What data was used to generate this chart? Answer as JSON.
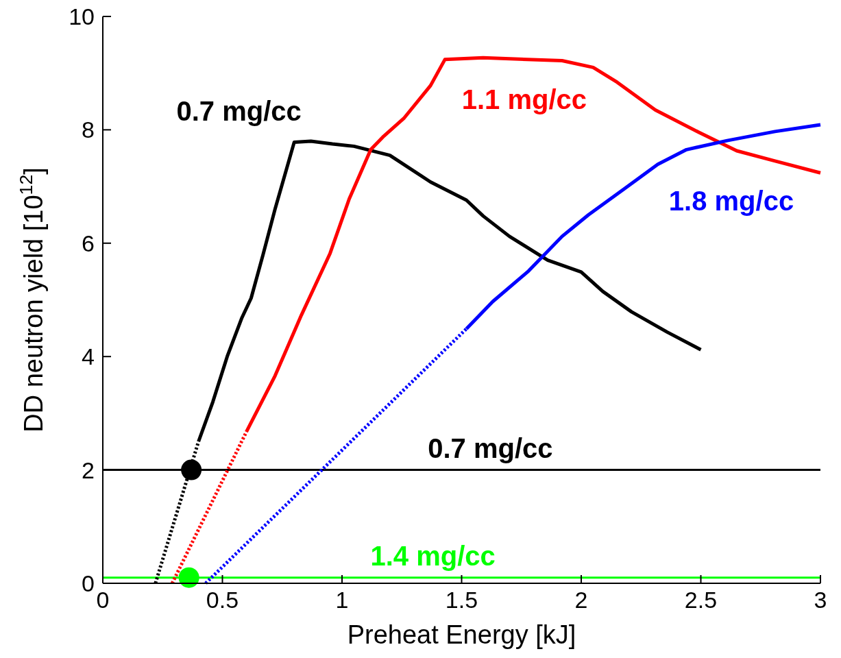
{
  "chart_data": {
    "type": "line",
    "xlabel": "Preheat Energy [kJ]",
    "ylabel": "DD neutron yield [10$^{12}$]",
    "xlim": [
      0,
      3
    ],
    "ylim": [
      0,
      10
    ],
    "xticks": [
      0,
      0.5,
      1,
      1.5,
      2,
      2.5,
      3
    ],
    "yticks": [
      0,
      2,
      4,
      6,
      8,
      10
    ],
    "grid": false,
    "marker": "none",
    "series": [
      {
        "color": "#000000",
        "line_style": "dotted",
        "x": [
          0.22,
          0.4
        ],
        "values": [
          0,
          2.5
        ]
      },
      {
        "name": "0.7 mg/cc",
        "color": "#000000",
        "line_style": "solid",
        "x": [
          0.4,
          0.46,
          0.52,
          0.58,
          0.62,
          0.67,
          0.72,
          0.8,
          0.87,
          0.96,
          1.05,
          1.2,
          1.37,
          1.52,
          1.59,
          1.7,
          1.86,
          2.0,
          2.09,
          2.21,
          2.36,
          2.5
        ],
        "values": [
          2.5,
          3.2,
          4.0,
          4.67,
          5.03,
          5.8,
          6.6,
          7.78,
          7.8,
          7.75,
          7.71,
          7.55,
          7.08,
          6.76,
          6.48,
          6.12,
          5.7,
          5.49,
          5.15,
          4.79,
          4.43,
          4.12
        ]
      },
      {
        "color": "#ff0000",
        "line_style": "dotted",
        "x": [
          0.29,
          0.6
        ],
        "values": [
          0,
          2.67
        ]
      },
      {
        "name": "1.1 mg/cc",
        "color": "#ff0000",
        "line_style": "solid",
        "x": [
          0.6,
          0.72,
          0.83,
          0.95,
          1.03,
          1.12,
          1.17,
          1.26,
          1.37,
          1.43,
          1.59,
          1.92,
          2.05,
          2.15,
          2.31,
          2.49,
          2.65,
          2.81,
          3.0
        ],
        "values": [
          2.67,
          3.66,
          4.73,
          5.82,
          6.78,
          7.65,
          7.87,
          8.21,
          8.78,
          9.24,
          9.27,
          9.22,
          9.1,
          8.84,
          8.35,
          7.96,
          7.63,
          7.45,
          7.24
        ]
      },
      {
        "color": "#0000ff",
        "line_style": "dotted",
        "x": [
          0.43,
          1.52
        ],
        "values": [
          0,
          4.49
        ]
      },
      {
        "name": "1.8 mg/cc",
        "color": "#0000ff",
        "line_style": "solid",
        "x": [
          1.52,
          1.63,
          1.78,
          1.92,
          2.03,
          2.18,
          2.32,
          2.44,
          2.61,
          2.81,
          3.0
        ],
        "values": [
          4.49,
          4.97,
          5.51,
          6.12,
          6.5,
          6.96,
          7.39,
          7.65,
          7.81,
          7.97,
          8.09
        ]
      },
      {
        "type": "scatter",
        "marker": "circle",
        "colors": [
          "#000000",
          "#00ff00"
        ],
        "x": [
          0.37,
          0.36
        ],
        "values": [
          2,
          0.1
        ]
      }
    ],
    "ref_lines": [
      {
        "axis": "y",
        "value": 2,
        "label": "0.7 mg/cc",
        "color": "#000000"
      },
      {
        "axis": "y",
        "value": 0.1,
        "label": "1.4 mg/cc",
        "color": "#00ff00"
      }
    ]
  }
}
